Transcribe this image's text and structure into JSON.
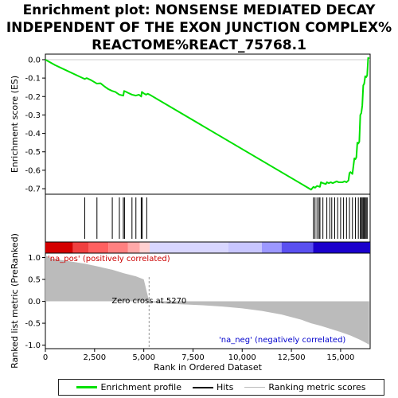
{
  "chart_data": {
    "type": "line",
    "title_lines": [
      "Enrichment plot: NONSENSE MEDIATED DECAY",
      "INDEPENDENT OF THE EXON JUNCTION COMPLEX%",
      "REACTOME%REACT_75768.1"
    ],
    "xlabel": "Rank in Ordered Dataset",
    "ylabel_top": "Enrichment score (ES)",
    "ylabel_bottom": "Ranked list metric (PreRanked)",
    "xlim": [
      0,
      16500
    ],
    "x_ticks": [
      0,
      2500,
      5000,
      7500,
      10000,
      12500,
      15000
    ],
    "x_tick_labels": [
      "0",
      "2,500",
      "5,000",
      "7,500",
      "10,000",
      "12,500",
      "15,000"
    ],
    "es_ylim": [
      -0.73,
      0.03
    ],
    "es_ticks": [
      0.0,
      -0.1,
      -0.2,
      -0.3,
      -0.4,
      -0.5,
      -0.6,
      -0.7
    ],
    "es_tick_labels": [
      "0.0",
      "-0.1",
      "-0.2",
      "-0.3",
      "-0.4",
      "-0.5",
      "-0.6",
      "-0.7"
    ],
    "metric_ylim": [
      -1.08,
      1.1
    ],
    "metric_ticks": [
      1.0,
      0.5,
      0.0,
      -0.5,
      -1.0
    ],
    "metric_tick_labels": [
      "1.0",
      "0.5",
      "0.0",
      "-0.5",
      "-1.0"
    ],
    "es_profile": {
      "x": [
        0,
        500,
        1000,
        1500,
        2000,
        2100,
        2300,
        2620,
        2800,
        3000,
        3200,
        3400,
        3550,
        3760,
        3960,
        4000,
        4050,
        4200,
        4400,
        4600,
        4750,
        4870,
        4900,
        5000,
        5120,
        5200,
        5300,
        13500,
        13620,
        13700,
        13800,
        13950,
        14000,
        14100,
        14250,
        14300,
        14400,
        14500,
        14600,
        14700,
        14800,
        14900,
        15000,
        15100,
        15200,
        15300,
        15400,
        15450,
        15500,
        15600,
        15700,
        15750,
        15800,
        15850,
        15900,
        15950,
        16000,
        16050,
        16100,
        16150,
        16200,
        16250,
        16300,
        16350,
        16400,
        16450
      ],
      "y": [
        0.0,
        -0.03,
        -0.055,
        -0.08,
        -0.105,
        -0.1,
        -0.11,
        -0.13,
        -0.128,
        -0.145,
        -0.16,
        -0.17,
        -0.175,
        -0.19,
        -0.195,
        -0.17,
        -0.172,
        -0.18,
        -0.19,
        -0.195,
        -0.19,
        -0.2,
        -0.175,
        -0.183,
        -0.19,
        -0.185,
        -0.19,
        -0.705,
        -0.69,
        -0.695,
        -0.685,
        -0.69,
        -0.665,
        -0.67,
        -0.675,
        -0.665,
        -0.67,
        -0.665,
        -0.67,
        -0.665,
        -0.66,
        -0.665,
        -0.665,
        -0.665,
        -0.66,
        -0.665,
        -0.655,
        -0.615,
        -0.61,
        -0.62,
        -0.535,
        -0.54,
        -0.53,
        -0.45,
        -0.455,
        -0.445,
        -0.3,
        -0.29,
        -0.25,
        -0.14,
        -0.13,
        -0.09,
        -0.095,
        -0.085,
        0.01,
        0.005
      ]
    },
    "hits": [
      2000,
      2620,
      3400,
      3760,
      3960,
      4020,
      4400,
      4600,
      4870,
      4920,
      5150,
      13620,
      13700,
      13800,
      13900,
      13950,
      14100,
      14300,
      14450,
      14550,
      14700,
      14850,
      15000,
      15150,
      15300,
      15450,
      15600,
      15750,
      15900,
      16000,
      16050,
      16100,
      16150,
      16200,
      16250,
      16300,
      16350
    ],
    "metric_curve": {
      "x": [
        0,
        300,
        1000,
        2000,
        2620,
        3400,
        4000,
        4600,
        5000,
        5270,
        5300,
        6000,
        7000,
        8000,
        9000,
        10000,
        11000,
        12000,
        12500,
        13000,
        13500,
        14000,
        14500,
        15000,
        15500,
        16000,
        16300,
        16450
      ],
      "y": [
        1.05,
        0.98,
        0.93,
        0.86,
        0.8,
        0.72,
        0.64,
        0.57,
        0.5,
        0.0,
        -0.02,
        -0.05,
        -0.07,
        -0.09,
        -0.12,
        -0.16,
        -0.22,
        -0.3,
        -0.36,
        -0.42,
        -0.5,
        -0.56,
        -0.63,
        -0.7,
        -0.78,
        -0.88,
        -0.95,
        -0.99
      ]
    },
    "zero_cross_x": 5270,
    "zero_cross_label": "Zero cross at 5270",
    "pos_label": "'na_pos' (positively correlated)",
    "neg_label": "'na_neg' (negatively correlated)",
    "legend_position": "bottom",
    "legend": [
      "Enrichment profile",
      "Hits",
      "Ranking metric scores"
    ],
    "colors": {
      "es_line": "#00e000",
      "hits": "#000000",
      "metric_fill": "#bbbbbb",
      "pos_label": "#cc0000",
      "neg_label": "#0000cc",
      "bar_red": "#e00000",
      "bar_blue": "#1a00cc",
      "bar_mid": "#dedcff"
    }
  }
}
